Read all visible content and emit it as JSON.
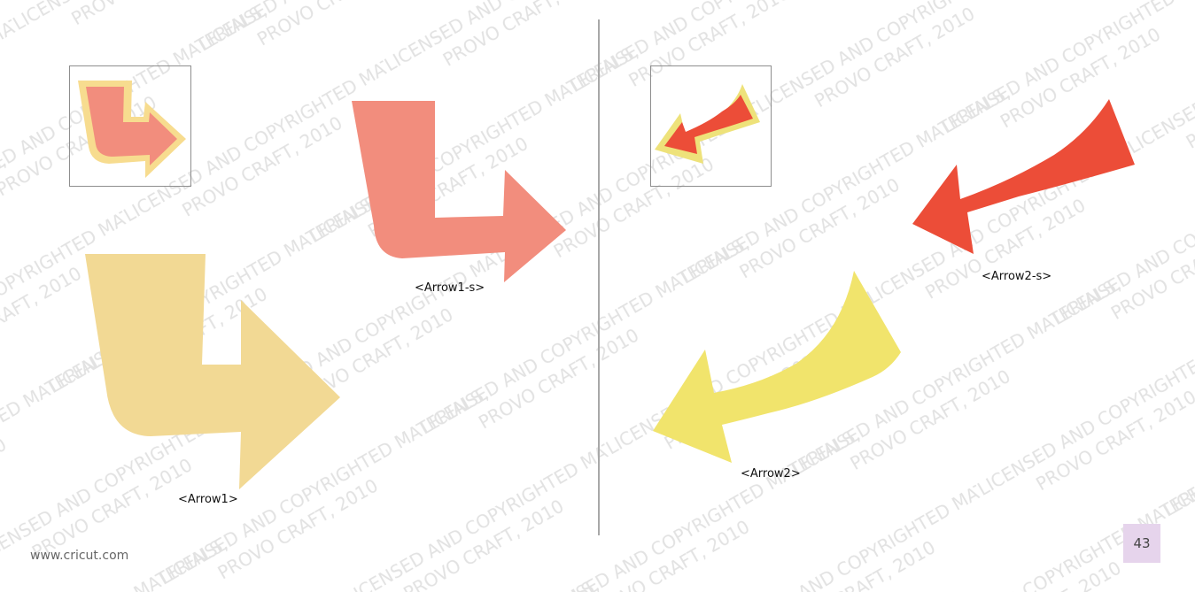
{
  "watermark": {
    "line1": "LICENSED AND COPYRIGHTED MATERIALS,",
    "line2": "PROVO CRAFT, 2010"
  },
  "left_panel": {
    "arrow_large_label": "<Arrow1>",
    "arrow_small_label": "<Arrow1-s>",
    "colors": {
      "large": "#f2d994",
      "small": "#f28d7d",
      "thumb_outline": "#f7dc8f"
    }
  },
  "right_panel": {
    "arrow_large_label": "<Arrow2>",
    "arrow_small_label": "<Arrow2-s>",
    "colors": {
      "large": "#f1e46c",
      "small": "#ec4d38",
      "thumb_outline": "#eee27a"
    }
  },
  "footer": {
    "url": "www.cricut.com",
    "page_number": "43"
  }
}
